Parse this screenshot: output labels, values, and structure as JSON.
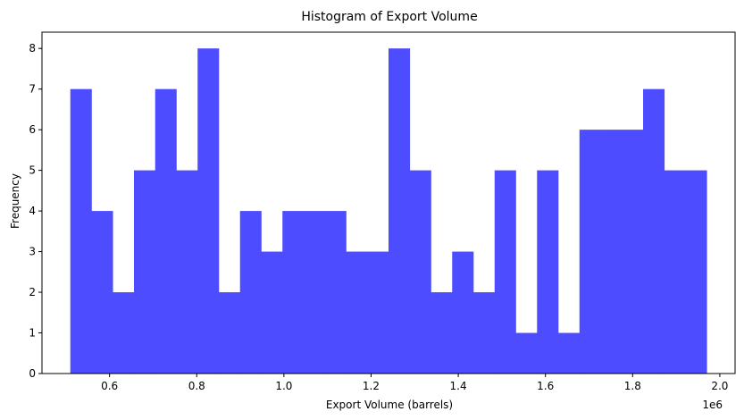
{
  "chart_data": {
    "type": "bar",
    "title": "Histogram of Export Volume",
    "xlabel": "Export Volume (barrels)",
    "ylabel": "Frequency",
    "x_offset_label": "1e6",
    "bin_start": 510000,
    "bin_width": 48667,
    "values": [
      7,
      4,
      2,
      5,
      7,
      5,
      8,
      2,
      4,
      3,
      4,
      4,
      4,
      3,
      3,
      8,
      5,
      2,
      3,
      2,
      5,
      1,
      5,
      1,
      6,
      6,
      6,
      7,
      5,
      5
    ],
    "xlim": [
      445000,
      2035000
    ],
    "ylim": [
      0,
      8.4
    ],
    "x_ticks": [
      0.6,
      0.8,
      1.0,
      1.2,
      1.4,
      1.6,
      1.8,
      2.0
    ],
    "x_tick_labels": [
      "0.6",
      "0.8",
      "1.0",
      "1.2",
      "1.4",
      "1.6",
      "1.8",
      "2.0"
    ],
    "y_ticks": [
      0,
      1,
      2,
      3,
      4,
      5,
      6,
      7,
      8
    ],
    "y_tick_labels": [
      "0",
      "1",
      "2",
      "3",
      "4",
      "5",
      "6",
      "7",
      "8"
    ],
    "bar_color": "#4d4dff",
    "grid": false,
    "legend": "none"
  }
}
